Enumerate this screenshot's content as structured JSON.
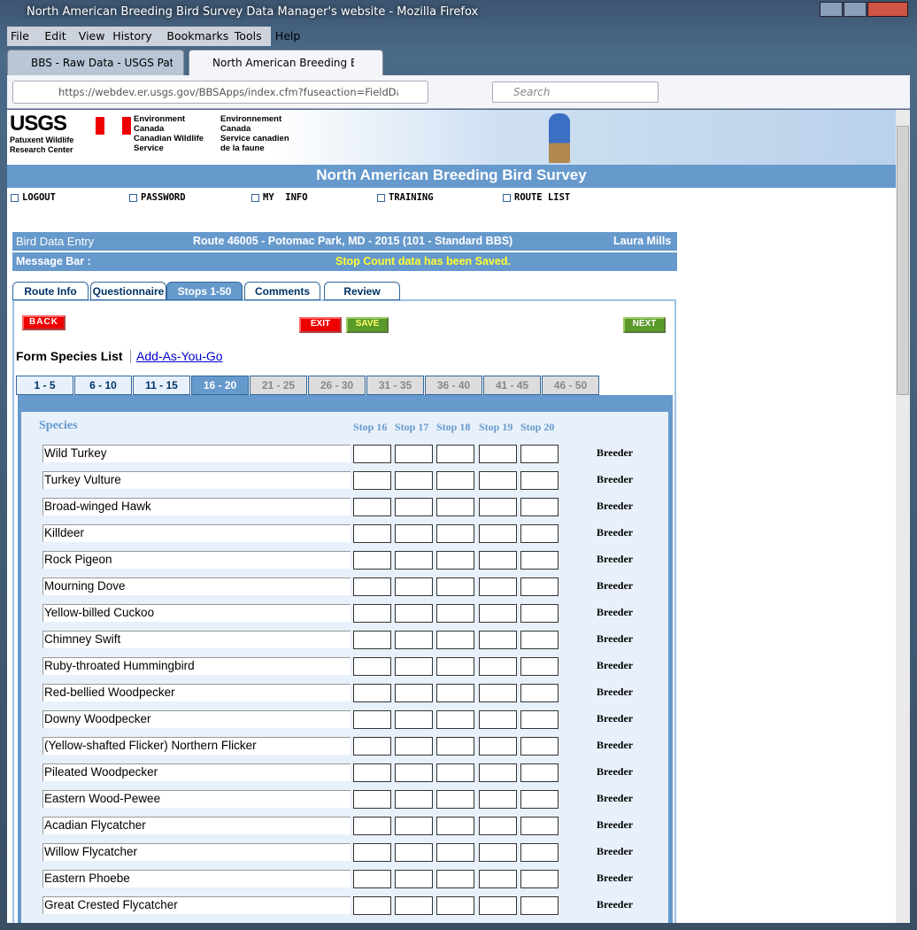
{
  "window": {
    "title": "North American Breeding Bird Survey Data Manager's website - Mozilla Firefox"
  },
  "menu": [
    "File",
    "Edit",
    "View",
    "History",
    "Bookmarks",
    "Tools",
    "Help"
  ],
  "browser_tabs": [
    "BBS - Raw Data - USGS Pat...",
    "North American Breeding Bird ..."
  ],
  "url": "https://webdev.er.usgs.gov/BBSApps/index.cfm?fuseaction=FieldData.",
  "search": "Search",
  "header": {
    "usgs": "USGS",
    "usgs_sub": [
      "Patuxent Wildlife",
      "Research Center"
    ],
    "env_en": [
      "Environment",
      "Canada",
      "Canadian Wildlife",
      "Service"
    ],
    "env_fr": [
      "Environnement",
      "Canada",
      "Service canadien",
      "de la faune"
    ],
    "site_title": "North American Breeding Bird Survey"
  },
  "nav": [
    "LOGOUT",
    "PASSWORD",
    "MY  INFO",
    "TRAINING",
    "ROUTE LIST"
  ],
  "info_bar": {
    "left": "Bird Data Entry",
    "center": "Route 46005 - Potomac Park, MD - 2015 (101 - Standard BBS)",
    "right": "Laura Mills"
  },
  "message_bar": {
    "label": "Message Bar :",
    "message": "Stop Count data has been Saved."
  },
  "page_tabs": [
    "Route Info",
    "Questionnaire",
    "Stops 1-50",
    "Comments",
    "Review"
  ],
  "buttons": {
    "back": "BACK",
    "exit": "EXIT",
    "save": "SAVE",
    "next": "NEXT"
  },
  "form": {
    "label": "Form Species List",
    "link": "Add-As-You-Go"
  },
  "stop_tabs": [
    "1 - 5",
    "6 - 10",
    "11 - 15",
    "16 - 20",
    "21 - 25",
    "26 - 30",
    "31 - 35",
    "36 - 40",
    "41 - 45",
    "46 - 50"
  ],
  "table": {
    "species_header": "Species",
    "stops": [
      "Stop 16",
      "Stop 17",
      "Stop 18",
      "Stop 19",
      "Stop 20"
    ],
    "rows": [
      [
        "Wild Turkey",
        "Breeder"
      ],
      [
        "Turkey Vulture",
        "Breeder"
      ],
      [
        "Broad-winged Hawk",
        "Breeder"
      ],
      [
        "Killdeer",
        "Breeder"
      ],
      [
        "Rock Pigeon",
        "Breeder"
      ],
      [
        "Mourning Dove",
        "Breeder"
      ],
      [
        "Yellow-billed Cuckoo",
        "Breeder"
      ],
      [
        "Chimney Swift",
        "Breeder"
      ],
      [
        "Ruby-throated Hummingbird",
        "Breeder"
      ],
      [
        "Red-bellied Woodpecker",
        "Breeder"
      ],
      [
        "Downy Woodpecker",
        "Breeder"
      ],
      [
        "(Yellow-shafted Flicker) Northern Flicker",
        "Breeder"
      ],
      [
        "Pileated Woodpecker",
        "Breeder"
      ],
      [
        "Eastern Wood-Pewee",
        "Breeder"
      ],
      [
        "Acadian Flycatcher",
        "Breeder"
      ],
      [
        "Willow Flycatcher",
        "Breeder"
      ],
      [
        "Eastern Phoebe",
        "Breeder"
      ],
      [
        "Great Crested Flycatcher",
        "Breeder"
      ]
    ]
  }
}
